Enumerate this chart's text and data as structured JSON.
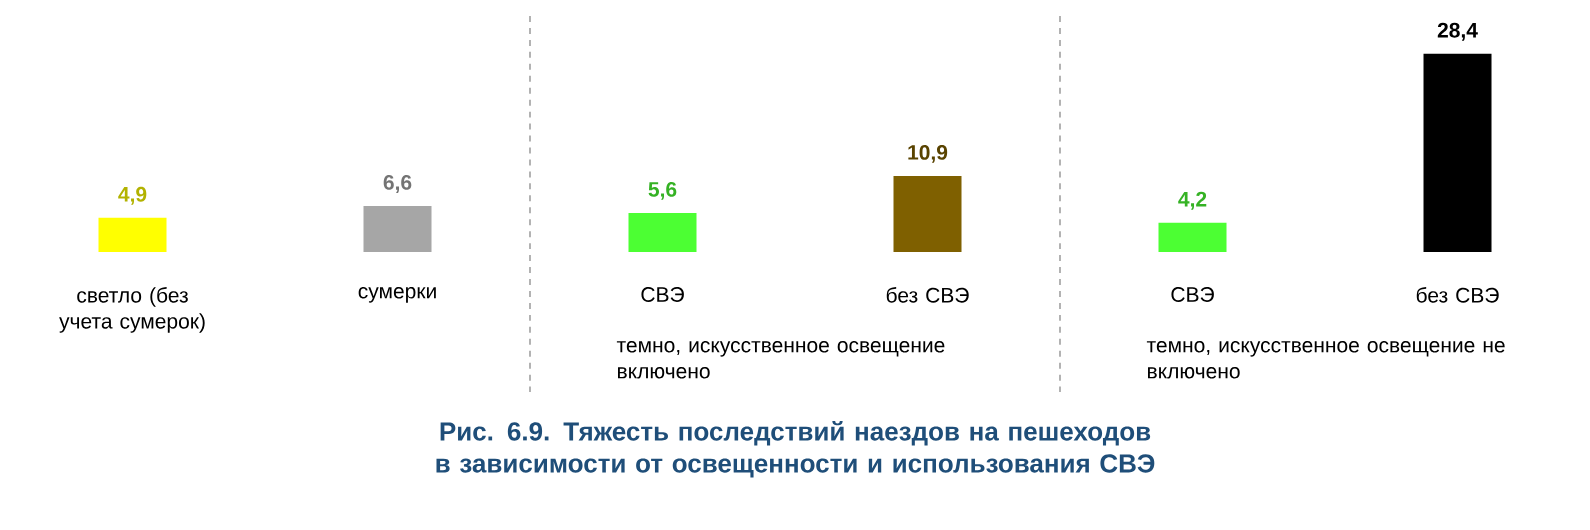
{
  "chart_data": {
    "type": "bar",
    "title": "Рис. 6.9. Тяжесть последствий наездов на пешеходов в зависимости от освещенности и использования СВЭ",
    "categories": [
      "светло (без учета сумерок)",
      "сумерки",
      "СВЭ",
      "без СВЭ",
      "СВЭ",
      "без СВЭ"
    ],
    "values": [
      4.9,
      6.6,
      5.6,
      10.9,
      4.2,
      28.4
    ],
    "colors": [
      "#ffff00",
      "#a6a6a6",
      "#4cff33",
      "#7f6000",
      "#4cff33",
      "#000000"
    ],
    "value_labels": [
      "4,9",
      "6,6",
      "5,6",
      "10,9",
      "4,2",
      "28,4"
    ],
    "annotations": [
      "темно, искусственное освещение включено",
      "темно, искусственное освещение не включено"
    ]
  }
}
